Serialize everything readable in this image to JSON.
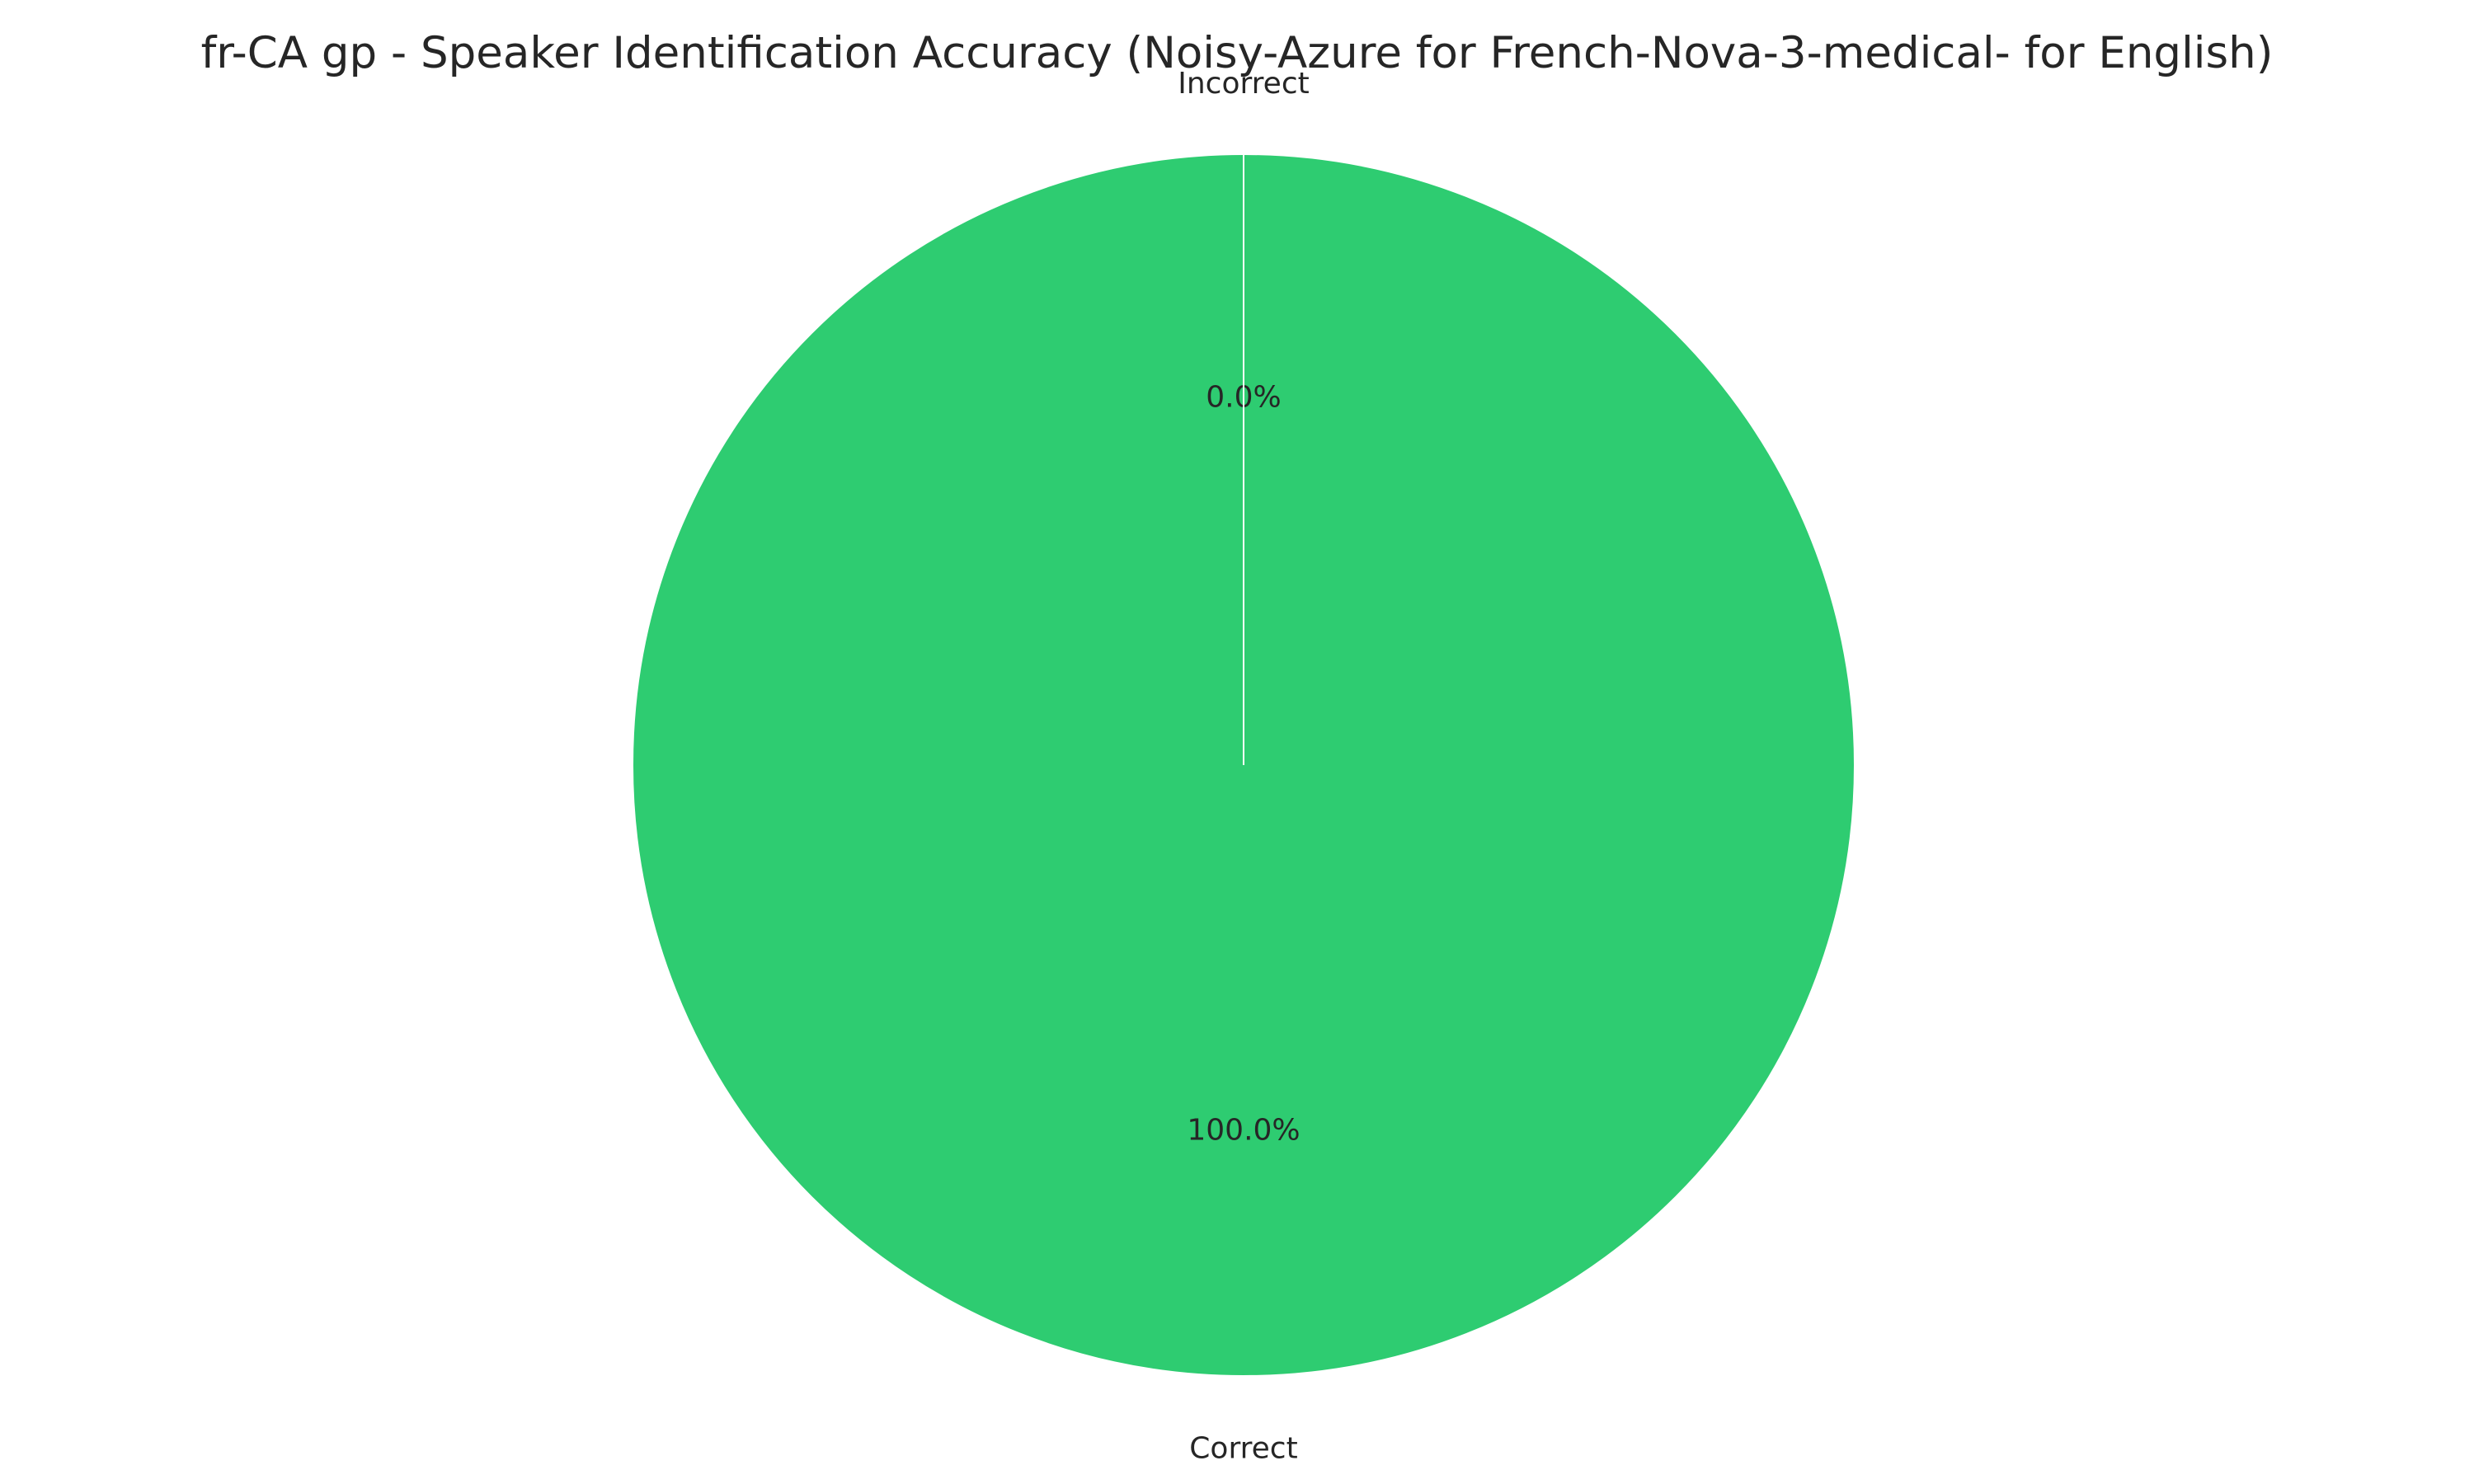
{
  "chart_data": {
    "type": "pie",
    "title": "fr-CA gp - Speaker Identification Accuracy (Noisy-Azure for French-Nova-3-medical- for English)",
    "slices": [
      {
        "label": "Incorrect",
        "value": 0.0,
        "pct_label": "0.0%",
        "color": "#e74c3c"
      },
      {
        "label": "Correct",
        "value": 100.0,
        "pct_label": "100.0%",
        "color": "#2ecc71"
      }
    ],
    "start_angle_deg": 90,
    "direction": "counterclockwise",
    "edge_color": "#ffffff"
  }
}
